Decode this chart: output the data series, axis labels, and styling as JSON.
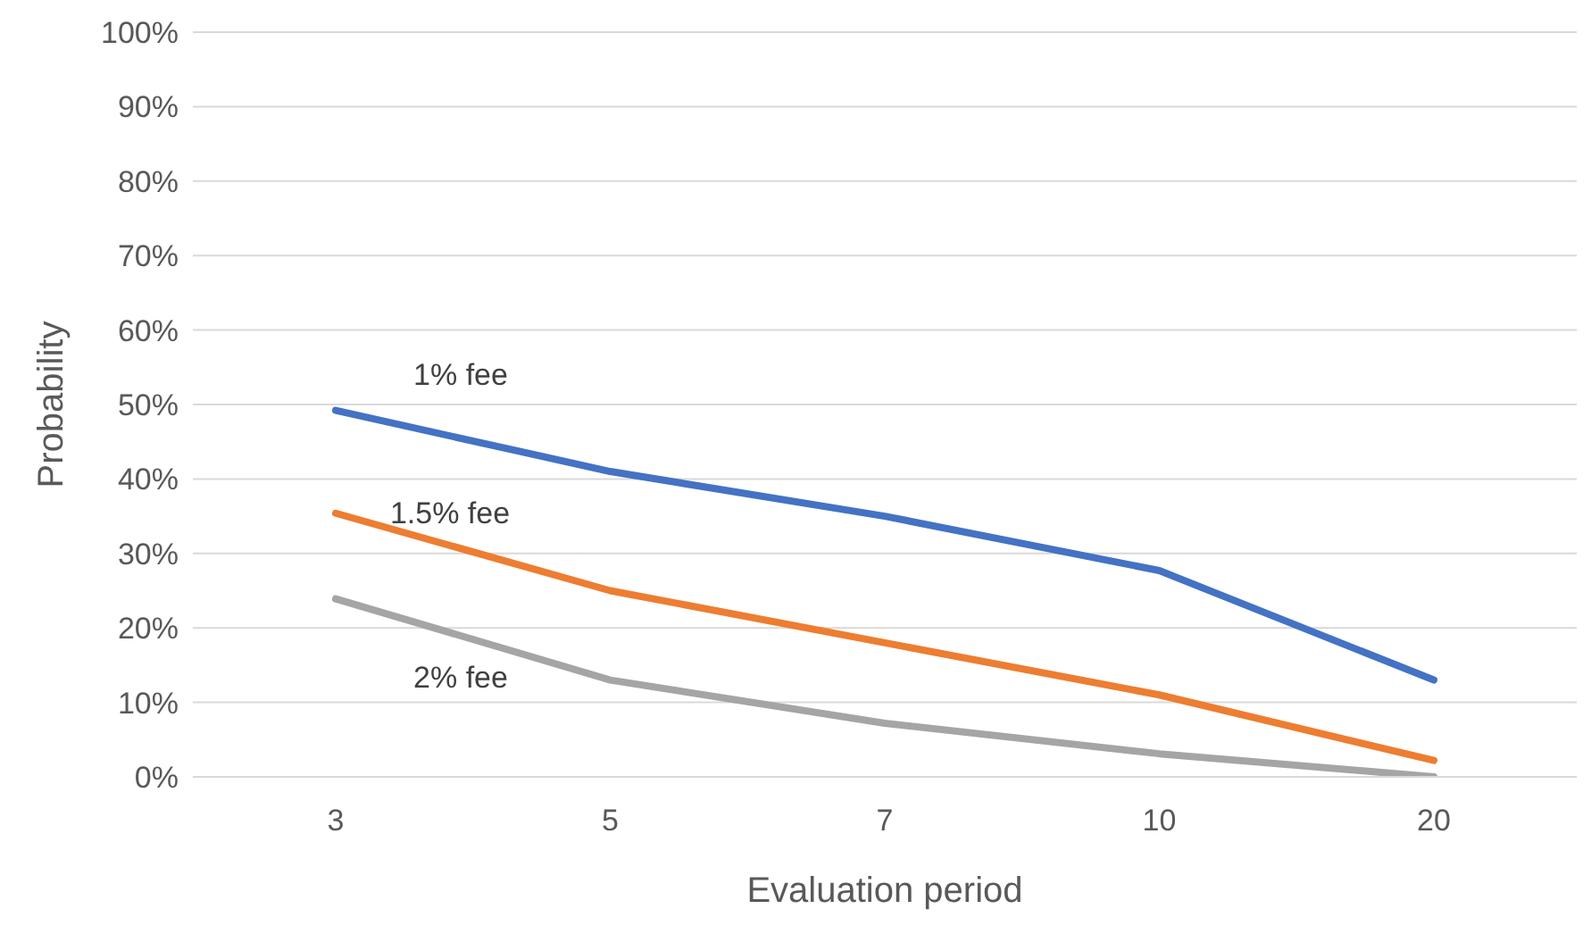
{
  "chart_data": {
    "type": "line",
    "xlabel": "Evaluation period",
    "ylabel": "Probability",
    "categories": [
      "3",
      "5",
      "7",
      "10",
      "20"
    ],
    "series": [
      {
        "name": "1% fee",
        "color": "#4472c4",
        "values": [
          49.2,
          41,
          35,
          27.7,
          13
        ]
      },
      {
        "name": "1.5% fee",
        "color": "#ed7d31",
        "values": [
          35.4,
          25,
          18,
          11,
          2.2
        ]
      },
      {
        "name": "2% fee",
        "color": "#a5a5a5",
        "values": [
          23.9,
          13,
          7.2,
          3.1,
          0
        ]
      }
    ],
    "ylim": [
      0,
      100
    ],
    "yticks": [
      {
        "value": 0,
        "label": "0%"
      },
      {
        "value": 10,
        "label": "10%"
      },
      {
        "value": 20,
        "label": "20%"
      },
      {
        "value": 30,
        "label": "30%"
      },
      {
        "value": 40,
        "label": "40%"
      },
      {
        "value": 50,
        "label": "50%"
      },
      {
        "value": 60,
        "label": "60%"
      },
      {
        "value": 70,
        "label": "70%"
      },
      {
        "value": 80,
        "label": "80%"
      },
      {
        "value": 90,
        "label": "90%"
      },
      {
        "value": 100,
        "label": "100%"
      }
    ],
    "grid": "y",
    "marker": "none",
    "line_style": "solid"
  }
}
